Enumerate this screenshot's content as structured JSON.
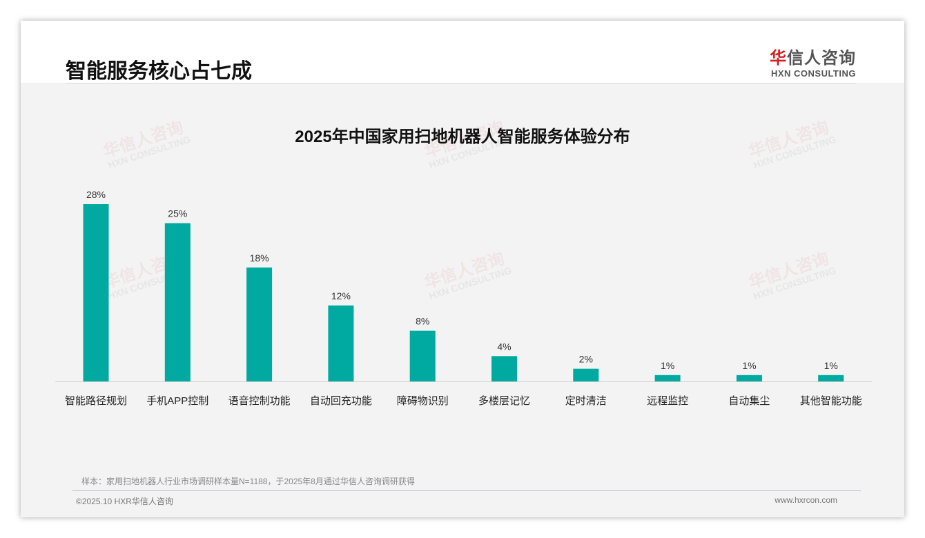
{
  "header": {
    "title": "智能服务核心占七成",
    "logo_cn_red": "华",
    "logo_cn": "信人咨询",
    "logo_en": "HXN CONSULTING"
  },
  "chart_data": {
    "type": "bar",
    "title": "2025年中国家用扫地机器人智能服务体验分布",
    "categories": [
      "智能路径规划",
      "手机APP控制",
      "语音控制功能",
      "自动回充功能",
      "障碍物识别",
      "多楼层记忆",
      "定时清洁",
      "远程监控",
      "自动集尘",
      "其他智能功能"
    ],
    "values": [
      28,
      25,
      18,
      12,
      8,
      4,
      2,
      1,
      1,
      1
    ],
    "labels": [
      "28%",
      "25%",
      "18%",
      "12%",
      "8%",
      "4%",
      "2%",
      "1%",
      "1%",
      "1%"
    ],
    "unit": "%",
    "ylim": [
      0,
      30
    ],
    "color": "#00aaa0",
    "grid": false
  },
  "footer": {
    "note": "样本：家用扫地机器人行业市场调研样本量N=1188，于2025年8月通过华信人咨询调研获得",
    "copyright": "©2025.10 HXR华信人咨询",
    "url": "www.hxrcon.com"
  },
  "watermark": "华信人咨询 HXN CONSULTING"
}
